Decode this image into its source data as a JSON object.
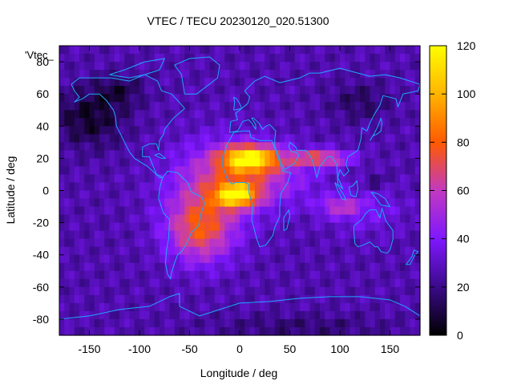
{
  "chart_data": {
    "type": "heatmap",
    "title": "VTEC / TECU 20230120_020.51300",
    "xlabel": "Longitude / deg",
    "ylabel": "Latitude / deg",
    "xlim": [
      -180,
      180
    ],
    "ylim": [
      -90,
      90
    ],
    "x_ticks": [
      -150,
      -100,
      -50,
      0,
      50,
      100,
      150
    ],
    "y_ticks": [
      -80,
      -60,
      -40,
      -20,
      0,
      20,
      40,
      60,
      80
    ],
    "colorbar": {
      "range": [
        0,
        120
      ],
      "ticks": [
        0,
        20,
        40,
        60,
        80,
        100,
        120
      ],
      "palette": [
        "#000000",
        "#3b0a8a",
        "#7f17ff",
        "#c239c0",
        "#ff5a00",
        "#ffb400",
        "#ffff00"
      ]
    },
    "legend": {
      "label": "'Vtec_",
      "position": "top-left"
    },
    "grid_resolution_deg": {
      "lon": 5,
      "lat": 5
    },
    "background_vtec": 26,
    "features": [
      {
        "name": "equatorial anomaly crest north (Africa)",
        "lon": 10,
        "lat": 20,
        "peak": 112
      },
      {
        "name": "equatorial anomaly crest south (Africa)",
        "lon": -5,
        "lat": -3,
        "peak": 100
      },
      {
        "name": "southern Atlantic / South America enhancement",
        "lon": -40,
        "lat": -25,
        "peak": 70
      },
      {
        "name": "Indian Ocean tongue",
        "lon": 75,
        "lat": 20,
        "peak": 72
      },
      {
        "name": "North Pacific depletion",
        "lon": -150,
        "lat": 45,
        "trough": 6
      },
      {
        "name": "Antarctic low",
        "lon": 60,
        "lat": -85,
        "trough": 16
      }
    ],
    "overlay": "coastlines"
  }
}
